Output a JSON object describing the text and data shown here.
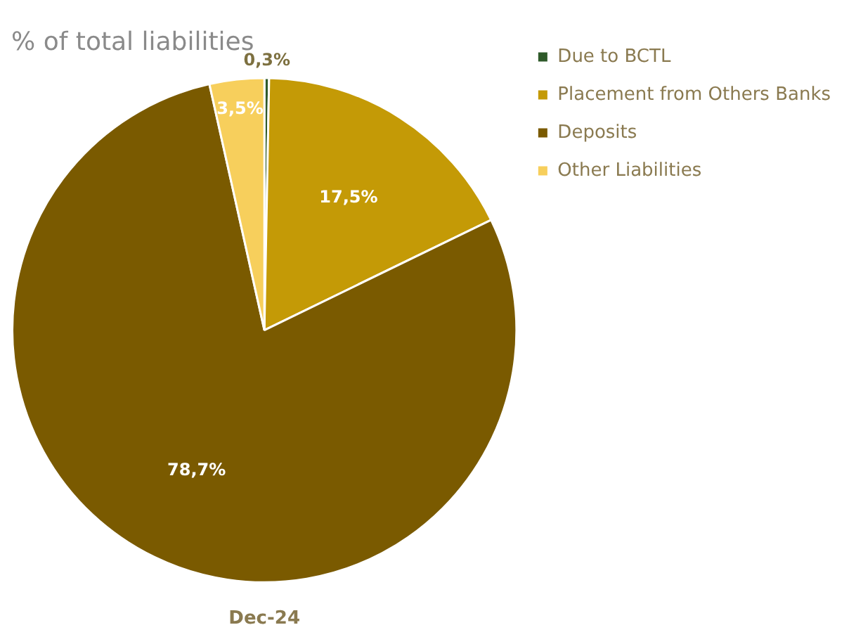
{
  "chart_data": {
    "type": "pie",
    "title": "% of total liabilities",
    "xlabel": "Dec-24",
    "categories": [
      "Due to BCTL",
      "Placement from Others Banks",
      "Deposits",
      "Other Liabilities"
    ],
    "values": [
      0.3,
      17.5,
      78.7,
      3.5
    ],
    "value_labels": [
      "0,3%",
      "17,5%",
      "78,7%",
      "3,5%"
    ],
    "colors": [
      "#2f5a2a",
      "#c49a06",
      "#7a5a00",
      "#f7cf5c"
    ],
    "legend": "top right"
  }
}
